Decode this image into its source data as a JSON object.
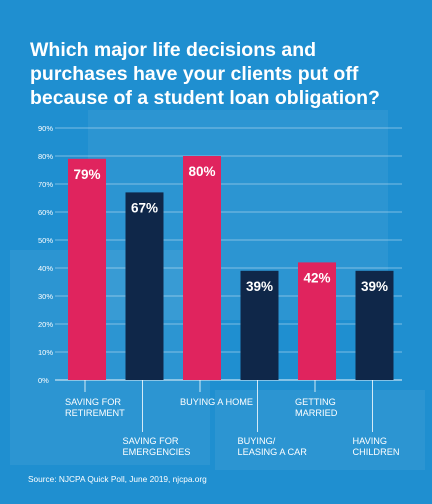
{
  "title_lines": [
    "Which major life decisions and",
    "purchases have your clients put off",
    "because of a student loan obligation?"
  ],
  "source": "Source: NJCPA Quick Poll, June 2019, njcpa.org",
  "colors": {
    "background": "#1f8fd0",
    "bar_pink": "#e0245e",
    "bar_navy": "#0f2749",
    "grid": "#ffffff",
    "text": "#ffffff"
  },
  "chart_data": {
    "type": "bar",
    "categories": [
      [
        "SAVING FOR",
        "RETIREMENT"
      ],
      [
        "SAVING FOR",
        "EMERGENCIES"
      ],
      [
        "BUYING A HOME"
      ],
      [
        "BUYING/",
        "LEASING A CAR"
      ],
      [
        "GETTING",
        "MARRIED"
      ],
      [
        "HAVING",
        "CHILDREN"
      ]
    ],
    "values": [
      79,
      67,
      80,
      39,
      42,
      39
    ],
    "value_labels": [
      "79%",
      "67%",
      "80%",
      "39%",
      "42%",
      "39%"
    ],
    "bar_colors": [
      "pink",
      "navy",
      "pink",
      "navy",
      "pink",
      "navy"
    ],
    "label_positions": [
      "top",
      "bottom",
      "top",
      "bottom",
      "top",
      "bottom"
    ],
    "y_ticks": [
      "0%",
      "10%",
      "20%",
      "30%",
      "40%",
      "50%",
      "60%",
      "70%",
      "80%",
      "90%"
    ],
    "ylim": [
      0,
      90
    ],
    "grid": true
  }
}
